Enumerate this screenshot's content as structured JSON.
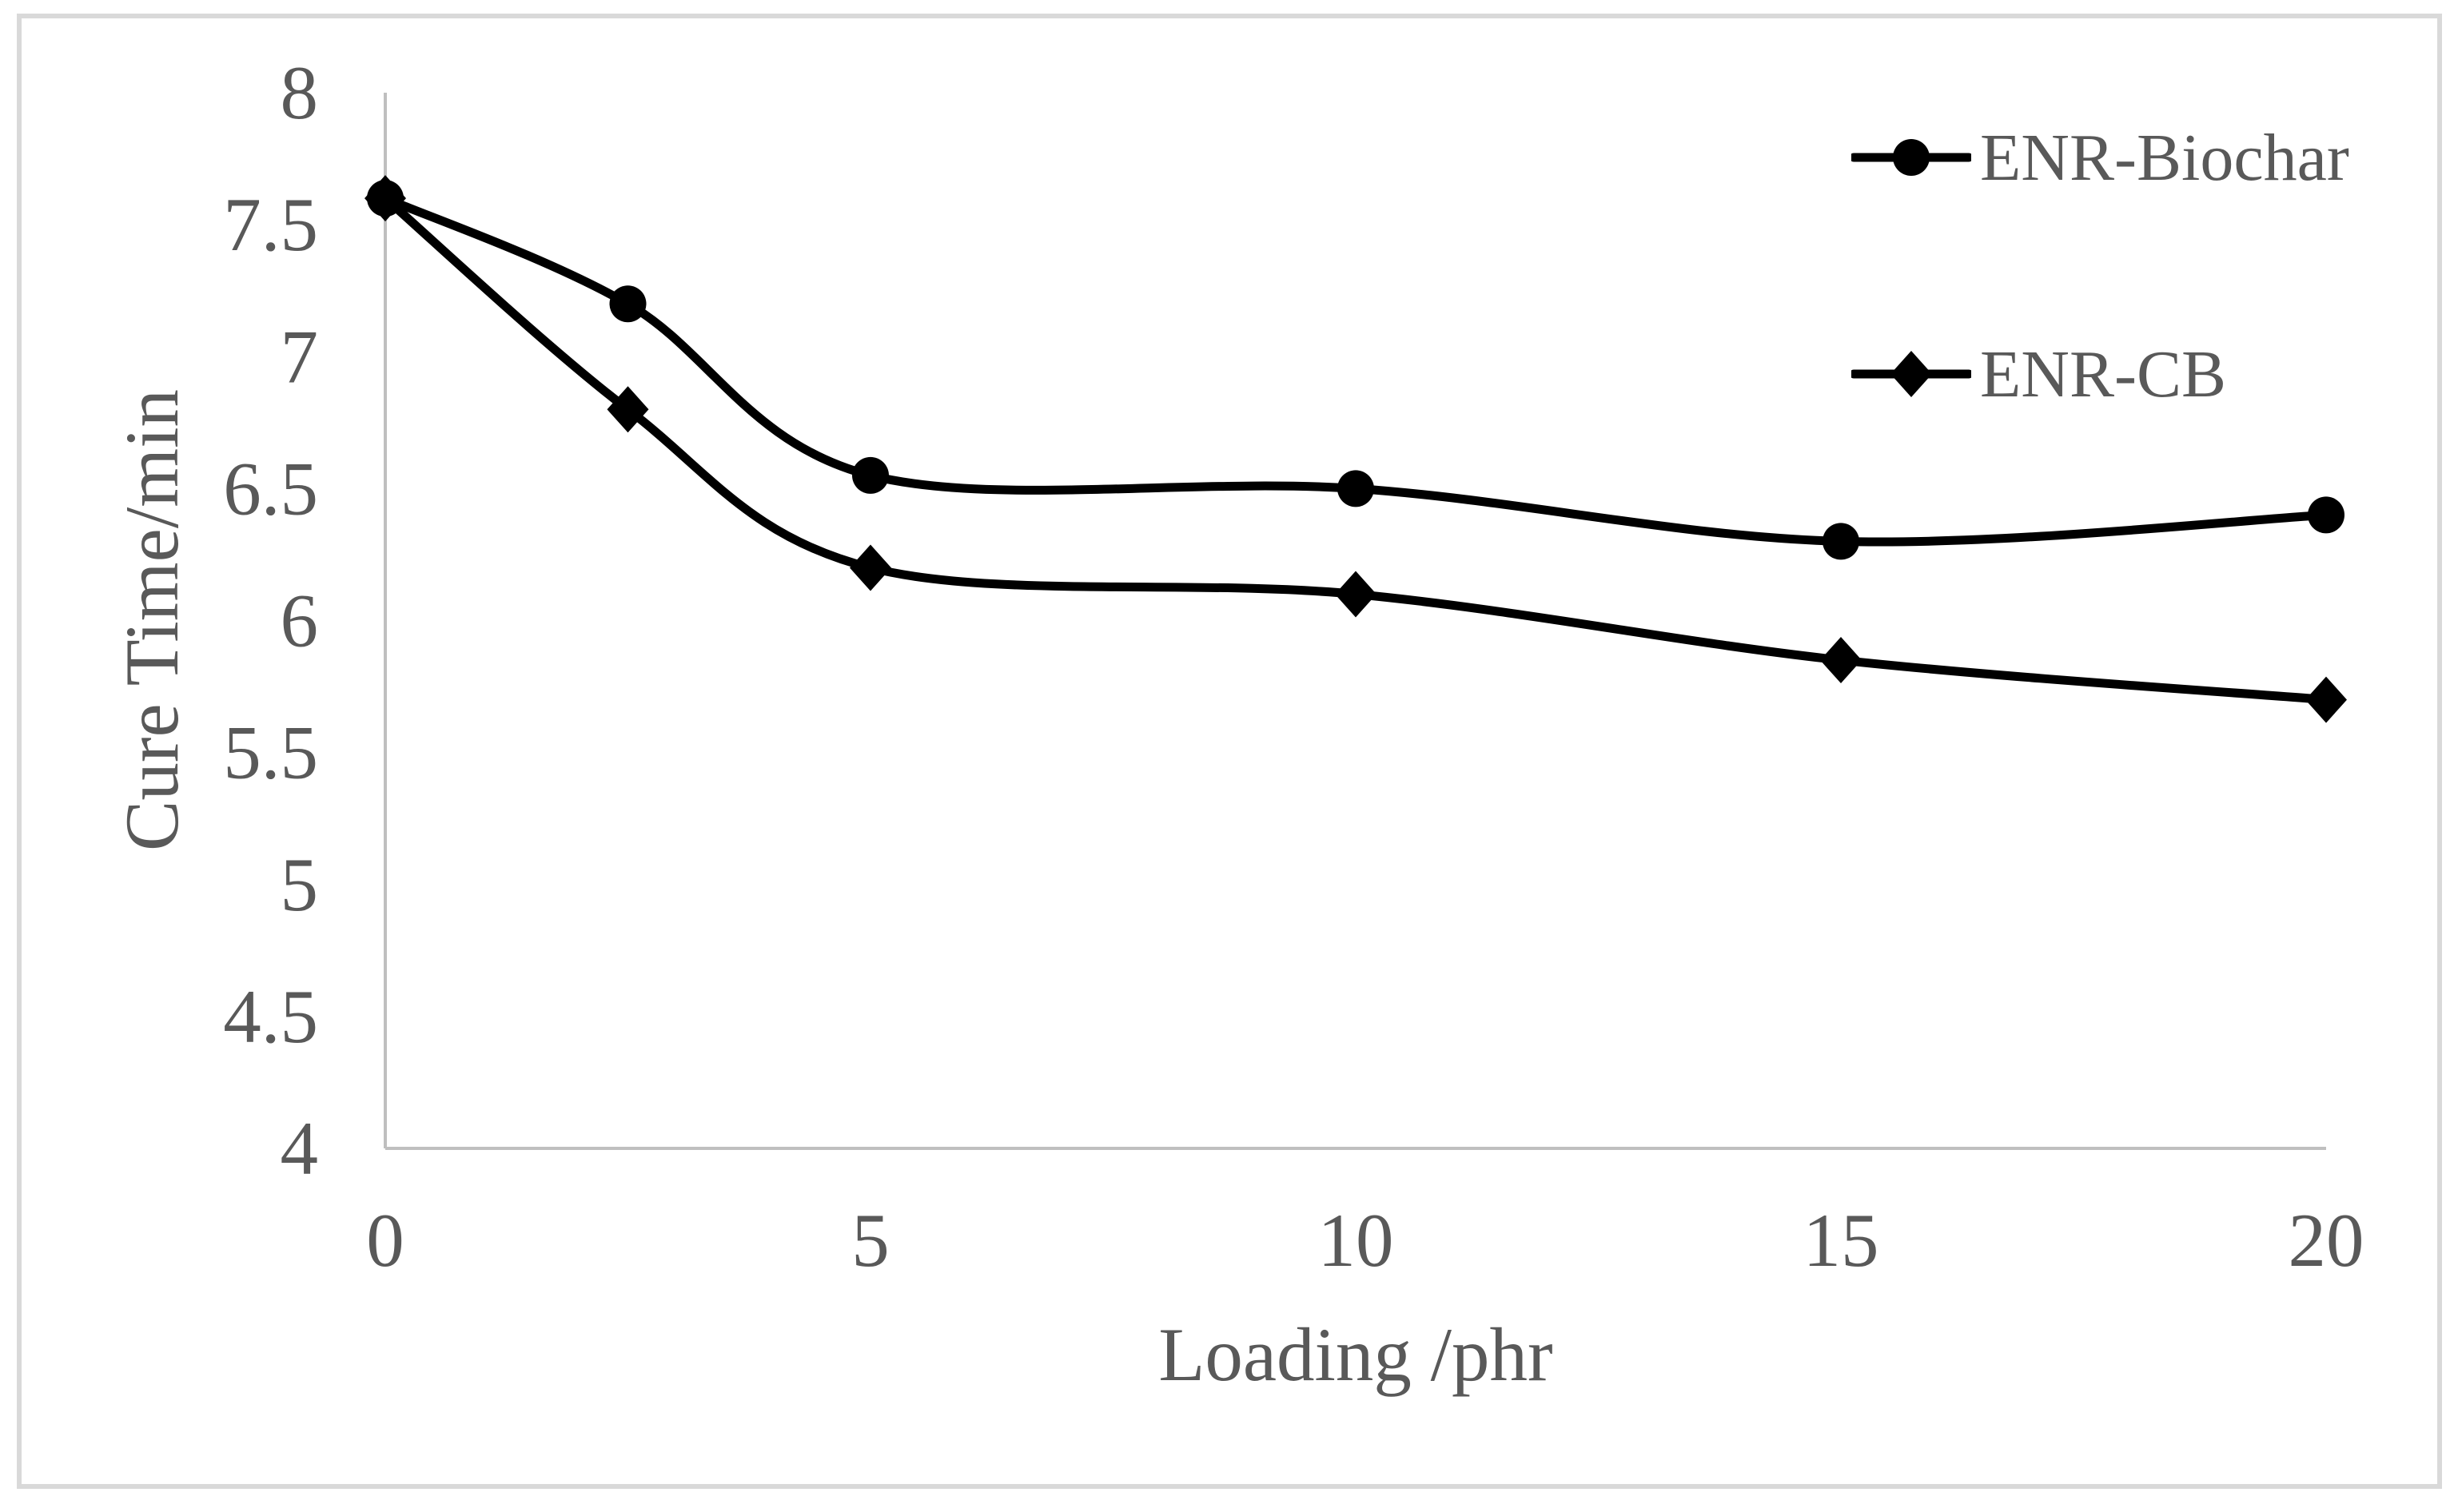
{
  "style": {
    "background": "#ffffff",
    "border_color": "#d9d9d9",
    "axis_color": "#bfbfbf",
    "text_color": "#595959"
  },
  "chart_data": {
    "type": "line",
    "title": "",
    "xlabel": "Loading /phr",
    "ylabel": "Cure Time/min",
    "x": [
      0,
      2.5,
      5,
      10,
      15,
      20
    ],
    "xlim": [
      0,
      20
    ],
    "ylim": [
      4,
      8
    ],
    "grid": false,
    "smoothed": true,
    "legend_position": "top-right",
    "x_ticks": [
      {
        "v": 0,
        "label": "0"
      },
      {
        "v": 5,
        "label": "5"
      },
      {
        "v": 10,
        "label": "10"
      },
      {
        "v": 15,
        "label": "15"
      },
      {
        "v": 20,
        "label": "20"
      }
    ],
    "y_ticks": [
      {
        "v": 8,
        "label": "8"
      },
      {
        "v": 7.5,
        "label": "7.5"
      },
      {
        "v": 7,
        "label": "7"
      },
      {
        "v": 6.5,
        "label": "6.5"
      },
      {
        "v": 6,
        "label": "6"
      },
      {
        "v": 5.5,
        "label": "5.5"
      },
      {
        "v": 5,
        "label": "5"
      },
      {
        "v": 4.5,
        "label": "4.5"
      },
      {
        "v": 4,
        "label": "4"
      }
    ],
    "series": [
      {
        "name": "ENR-Biochar",
        "marker": "circle",
        "color": "#000000",
        "values": [
          7.6,
          7.2,
          6.55,
          6.5,
          6.3,
          6.4
        ]
      },
      {
        "name": "ENR-CB",
        "marker": "diamond",
        "color": "#000000",
        "values": [
          7.6,
          6.8,
          6.2,
          6.1,
          5.85,
          5.7
        ]
      }
    ]
  }
}
